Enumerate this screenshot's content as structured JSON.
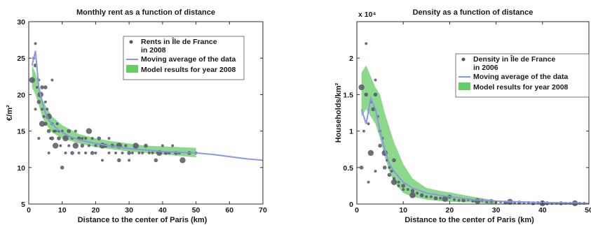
{
  "chart_data": [
    {
      "type": "scatter",
      "title": "Monthly rent as a function of distance",
      "xlabel": "Distance to the center of Paris (km)",
      "ylabel": "€/m²",
      "xlim": [
        0,
        70
      ],
      "ylim": [
        5,
        30
      ],
      "xticks": [
        0,
        10,
        20,
        30,
        40,
        50,
        60,
        70
      ],
      "yticks": [
        5,
        10,
        15,
        20,
        25,
        30
      ],
      "legend_position": "top-right",
      "colors": {
        "points": "#555566",
        "moving_average": "#8c96e8",
        "model": "#66cc66"
      },
      "series": [
        {
          "name": "Rents in Île de France in 2008",
          "kind": "scatter",
          "points": [
            [
              1,
              22
            ],
            [
              1.5,
              25
            ],
            [
              2,
              27
            ],
            [
              2,
              24
            ],
            [
              2.5,
              21
            ],
            [
              3,
              22
            ],
            [
              3,
              19
            ],
            [
              3.5,
              20
            ],
            [
              4,
              18
            ],
            [
              4,
              21
            ],
            [
              4.5,
              17
            ],
            [
              5,
              19
            ],
            [
              5,
              16
            ],
            [
              5.5,
              18
            ],
            [
              6,
              17
            ],
            [
              6,
              15
            ],
            [
              6.5,
              14
            ],
            [
              7,
              16
            ],
            [
              7,
              14
            ],
            [
              7.5,
              15
            ],
            [
              8,
              15
            ],
            [
              8,
              13
            ],
            [
              8.5,
              16
            ],
            [
              9,
              15
            ],
            [
              9,
              14
            ],
            [
              9.5,
              13
            ],
            [
              10,
              15
            ],
            [
              10,
              10
            ],
            [
              11,
              14
            ],
            [
              11,
              12
            ],
            [
              12,
              15
            ],
            [
              12,
              13
            ],
            [
              13,
              14
            ],
            [
              13,
              12
            ],
            [
              14,
              15
            ],
            [
              14,
              13
            ],
            [
              15,
              14
            ],
            [
              15,
              12
            ],
            [
              16,
              14
            ],
            [
              16,
              13
            ],
            [
              17,
              14
            ],
            [
              17,
              12
            ],
            [
              18,
              15
            ],
            [
              18,
              13
            ],
            [
              19,
              14
            ],
            [
              19,
              12
            ],
            [
              20,
              13
            ],
            [
              20,
              12
            ],
            [
              21,
              14
            ],
            [
              22,
              13
            ],
            [
              22,
              11
            ],
            [
              23,
              13
            ],
            [
              24,
              14
            ],
            [
              24,
              12
            ],
            [
              25,
              13
            ],
            [
              26,
              12
            ],
            [
              27,
              13
            ],
            [
              27,
              11
            ],
            [
              28,
              12
            ],
            [
              29,
              13
            ],
            [
              30,
              12
            ],
            [
              30,
              11
            ],
            [
              31,
              12
            ],
            [
              32,
              13
            ],
            [
              33,
              12
            ],
            [
              34,
              12
            ],
            [
              35,
              13
            ],
            [
              36,
              12
            ],
            [
              37,
              12
            ],
            [
              38,
              11
            ],
            [
              39,
              12
            ],
            [
              40,
              13
            ],
            [
              41,
              12
            ],
            [
              42,
              12
            ],
            [
              43,
              13
            ],
            [
              44,
              12
            ],
            [
              45,
              12
            ],
            [
              46,
              11
            ],
            [
              48,
              12
            ],
            [
              50,
              12
            ],
            [
              7,
              22
            ],
            [
              5,
              21
            ],
            [
              3,
              14
            ],
            [
              6,
              12
            ],
            [
              4,
              16
            ],
            [
              2,
              18
            ]
          ]
        },
        {
          "name": "Moving average of the data",
          "kind": "line",
          "x": [
            1,
            2,
            3,
            4,
            5,
            6,
            7,
            8,
            10,
            12,
            15,
            18,
            20,
            25,
            30,
            35,
            40,
            45,
            50,
            55,
            60,
            65,
            70
          ],
          "y": [
            24,
            26,
            21,
            19,
            17.5,
            16.5,
            16,
            15.5,
            14.8,
            14.3,
            13.8,
            13.5,
            13.3,
            12.9,
            12.6,
            12.4,
            12.2,
            12.1,
            12.0,
            11.8,
            11.5,
            11.2,
            11.0
          ]
        },
        {
          "name": "Model results for year 2008",
          "kind": "band",
          "x": [
            1,
            2,
            3,
            4,
            5,
            7,
            10,
            15,
            20,
            25,
            30,
            35,
            40,
            45,
            50
          ],
          "lower": [
            21,
            20,
            18.5,
            17,
            16,
            14.8,
            14,
            13.3,
            12.8,
            12.5,
            12.2,
            12.0,
            11.8,
            11.6,
            11.4
          ],
          "upper": [
            24,
            23,
            21.5,
            19.5,
            18.5,
            17,
            15.8,
            14.6,
            14.0,
            13.6,
            13.3,
            13.0,
            12.9,
            12.8,
            12.7
          ]
        }
      ]
    },
    {
      "type": "scatter",
      "title": "Density as a function of distance",
      "xlabel": "Distance to the center of Paris (km)",
      "ylabel": "Households/km²",
      "ylabel_multiplier": "x 10⁴",
      "xlim": [
        0,
        50
      ],
      "ylim": [
        0,
        2.5
      ],
      "xticks": [
        0,
        10,
        20,
        30,
        40,
        50
      ],
      "yticks": [
        0,
        0.5,
        1,
        1.5,
        2
      ],
      "legend_position": "top-right",
      "colors": {
        "points": "#555566",
        "moving_average": "#8c96e8",
        "model": "#66cc66"
      },
      "series": [
        {
          "name": "Density in Île de France in 2006",
          "kind": "scatter",
          "points": [
            [
              1,
              1.6
            ],
            [
              1.5,
              1.0
            ],
            [
              2,
              2.2
            ],
            [
              2,
              1.5
            ],
            [
              2.5,
              1.1
            ],
            [
              3,
              1.4
            ],
            [
              3.5,
              1.3
            ],
            [
              3,
              0.7
            ],
            [
              4,
              1.7
            ],
            [
              4,
              1.5
            ],
            [
              4.5,
              1.2
            ],
            [
              5,
              1.0
            ],
            [
              5,
              0.8
            ],
            [
              5.5,
              0.9
            ],
            [
              6,
              0.7
            ],
            [
              6,
              0.5
            ],
            [
              6.5,
              0.6
            ],
            [
              7,
              0.5
            ],
            [
              7,
              0.4
            ],
            [
              7.5,
              0.45
            ],
            [
              8,
              0.35
            ],
            [
              8,
              0.3
            ],
            [
              9,
              0.3
            ],
            [
              9,
              0.25
            ],
            [
              10,
              0.25
            ],
            [
              10,
              0.2
            ],
            [
              11,
              0.2
            ],
            [
              12,
              0.18
            ],
            [
              12,
              0.12
            ],
            [
              13,
              0.15
            ],
            [
              14,
              0.12
            ],
            [
              15,
              0.1
            ],
            [
              16,
              0.1
            ],
            [
              17,
              0.08
            ],
            [
              18,
              0.08
            ],
            [
              19,
              0.07
            ],
            [
              20,
              0.1
            ],
            [
              21,
              0.06
            ],
            [
              22,
              0.05
            ],
            [
              23,
              0.05
            ],
            [
              24,
              0.06
            ],
            [
              25,
              0.04
            ],
            [
              26,
              0.04
            ],
            [
              27,
              0.05
            ],
            [
              28,
              0.03
            ],
            [
              29,
              0.04
            ],
            [
              30,
              0.03
            ],
            [
              31,
              0.03
            ],
            [
              32,
              0.02
            ],
            [
              33,
              0.03
            ],
            [
              34,
              0.02
            ],
            [
              35,
              0.02
            ],
            [
              36,
              0.02
            ],
            [
              37,
              0.02
            ],
            [
              38,
              0.01
            ],
            [
              39,
              0.02
            ],
            [
              40,
              0.01
            ],
            [
              41,
              0.01
            ],
            [
              42,
              0.01
            ],
            [
              43,
              0.01
            ],
            [
              44,
              0.01
            ],
            [
              45,
              0.01
            ],
            [
              46,
              0.01
            ],
            [
              47,
              0.01
            ],
            [
              48,
              0.01
            ],
            [
              49,
              0.01
            ],
            [
              1,
              0.5
            ],
            [
              2.5,
              0.3
            ],
            [
              4,
              0.45
            ],
            [
              8,
              0.6
            ]
          ]
        },
        {
          "name": "Moving average of the data",
          "kind": "line",
          "x": [
            1,
            2,
            3,
            4,
            5,
            6,
            7,
            8,
            10,
            12,
            15,
            20,
            25,
            30,
            35,
            40,
            45,
            50
          ],
          "y": [
            1.3,
            1.1,
            1.45,
            1.3,
            1.0,
            0.75,
            0.55,
            0.45,
            0.3,
            0.22,
            0.15,
            0.1,
            0.06,
            0.04,
            0.03,
            0.02,
            0.015,
            0.01
          ]
        },
        {
          "name": "Model results for year 2008",
          "kind": "band",
          "x": [
            1,
            2,
            3,
            4,
            5,
            6,
            7,
            8,
            10,
            12,
            15,
            18,
            20,
            25,
            30
          ],
          "lower": [
            1.2,
            1.3,
            1.2,
            1.1,
            0.9,
            0.65,
            0.45,
            0.3,
            0.15,
            0.1,
            0.06,
            0.04,
            0.03,
            0.02,
            0.0
          ],
          "upper": [
            1.8,
            1.9,
            1.75,
            1.6,
            1.5,
            1.25,
            1.05,
            0.85,
            0.55,
            0.35,
            0.22,
            0.18,
            0.16,
            0.1,
            0.05
          ]
        }
      ]
    }
  ]
}
